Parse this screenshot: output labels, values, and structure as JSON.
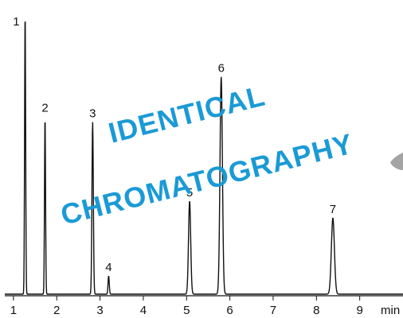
{
  "chart_data": {
    "type": "line",
    "title": "",
    "xlabel": "",
    "ylabel": "",
    "x_unit": "min",
    "xlim": [
      0.8,
      10.0
    ],
    "ylim": [
      0,
      100
    ],
    "x_ticks": [
      1,
      2,
      3,
      4,
      5,
      6,
      7,
      8,
      9
    ],
    "grid": false,
    "legend": "none",
    "baseline": 0,
    "peaks": [
      {
        "label": "1",
        "rt": 1.27,
        "height": 100,
        "width": 0.012
      },
      {
        "label": "2",
        "rt": 1.73,
        "height": 63,
        "width": 0.012
      },
      {
        "label": "3",
        "rt": 2.83,
        "height": 61,
        "width": 0.016
      },
      {
        "label": "4",
        "rt": 3.2,
        "height": 6.5,
        "width": 0.014
      },
      {
        "label": "5",
        "rt": 5.07,
        "height": 33,
        "width": 0.025
      },
      {
        "label": "6",
        "rt": 5.8,
        "height": 77,
        "width": 0.028
      },
      {
        "label": "7",
        "rt": 8.38,
        "height": 27,
        "width": 0.035
      }
    ],
    "line_color": "#111111",
    "overlay": {
      "line1": "IDENTICAL",
      "line2": "CHROMATOGRAPHY",
      "color": "#1a9ad6"
    }
  }
}
